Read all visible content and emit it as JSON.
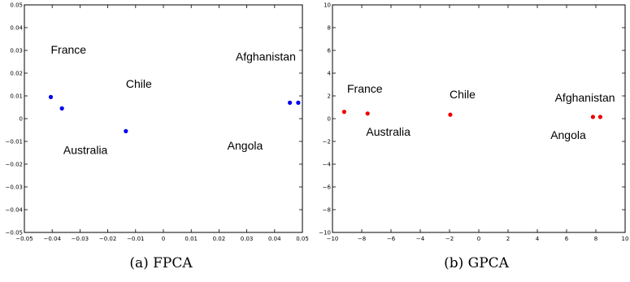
{
  "chart_data": [
    {
      "type": "scatter",
      "caption": "(a) FPCA",
      "xlim": [
        -0.05,
        0.05
      ],
      "ylim": [
        -0.05,
        0.05
      ],
      "xticks": [
        "−0.05",
        "−0.04",
        "−0.03",
        "−0.02",
        "−0.01",
        "0",
        "0.01",
        "0.02",
        "0.03",
        "0.04",
        "0.05"
      ],
      "yticks": [
        "−0.05",
        "−0.04",
        "−0.03",
        "−0.02",
        "−0.01",
        "0",
        "0.01",
        "0.02",
        "0.03",
        "0.04",
        "0.05"
      ],
      "grid": false,
      "marker_color": "#0000ee",
      "points": [
        {
          "x": -0.0405,
          "y": 0.0095
        },
        {
          "x": -0.0365,
          "y": 0.0045
        },
        {
          "x": -0.0135,
          "y": -0.0055
        },
        {
          "x": 0.0455,
          "y": 0.007
        },
        {
          "x": 0.0485,
          "y": 0.007
        }
      ],
      "annotations": [
        {
          "text": "France",
          "x": -0.0405,
          "y": 0.0285
        },
        {
          "text": "Chile",
          "x": -0.0135,
          "y": 0.0135
        },
        {
          "text": "Australia",
          "x": -0.036,
          "y": -0.0155
        },
        {
          "text": "Afghanistan",
          "x": 0.026,
          "y": 0.0255
        },
        {
          "text": "Angola",
          "x": 0.023,
          "y": -0.0135
        }
      ]
    },
    {
      "type": "scatter",
      "caption": "(b) GPCA",
      "xlim": [
        -10,
        10
      ],
      "ylim": [
        -10,
        10
      ],
      "xticks": [
        "−10",
        "−8",
        "−6",
        "−4",
        "−2",
        "0",
        "2",
        "4",
        "6",
        "8",
        "10"
      ],
      "yticks": [
        "−10",
        "−8",
        "−6",
        "−4",
        "−2",
        "0",
        "2",
        "4",
        "6",
        "8",
        "10"
      ],
      "grid": false,
      "marker_color": "#ee0000",
      "points": [
        {
          "x": -9.2,
          "y": 0.6
        },
        {
          "x": -7.6,
          "y": 0.45
        },
        {
          "x": -1.95,
          "y": 0.35
        },
        {
          "x": 7.8,
          "y": 0.15
        },
        {
          "x": 8.3,
          "y": 0.15
        }
      ],
      "annotations": [
        {
          "text": "France",
          "x": -9.0,
          "y": 2.3
        },
        {
          "text": "Chile",
          "x": -2.0,
          "y": 1.8
        },
        {
          "text": "Australia",
          "x": -7.7,
          "y": -1.5
        },
        {
          "text": "Afghanistan",
          "x": 5.2,
          "y": 1.5
        },
        {
          "text": "Angola",
          "x": 4.9,
          "y": -1.8
        }
      ]
    }
  ]
}
